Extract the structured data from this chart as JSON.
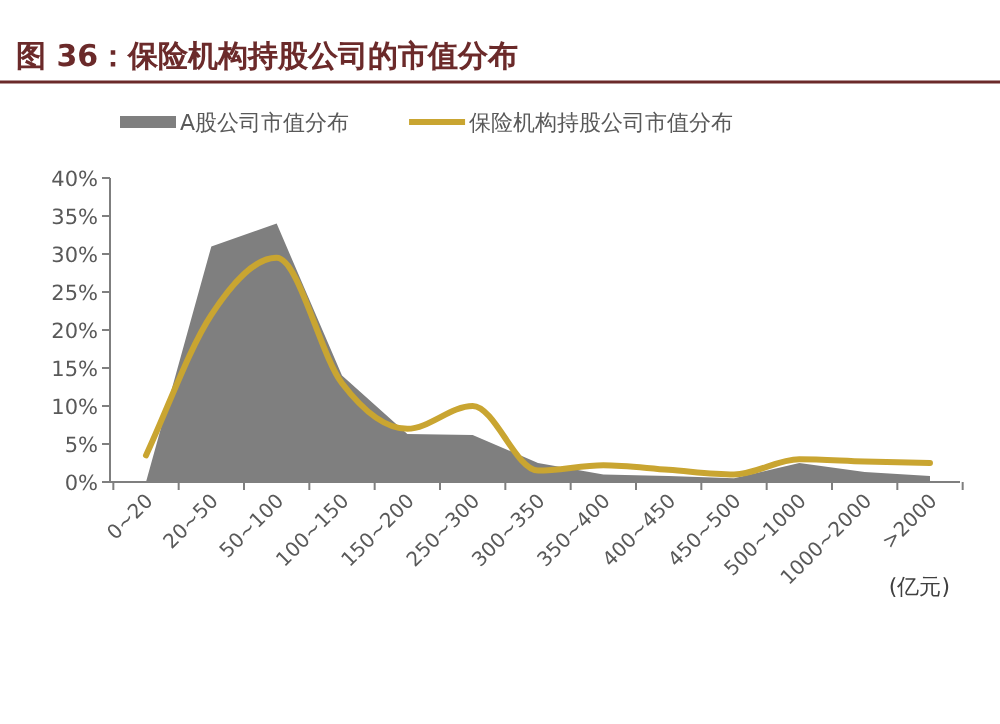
{
  "chart_data": {
    "type": "area",
    "title": "图 36：保险机构持股公司的市值分布",
    "categories": [
      "0~20",
      "20~50",
      "50~100",
      "100~150",
      "150~200",
      "250~300",
      "300~350",
      "350~400",
      "400~450",
      "450~500",
      "500~1000",
      "1000~2000",
      ">2000"
    ],
    "xlabel": "(亿元)",
    "series": [
      {
        "name": "A股公司市值分布",
        "color": "#7f7f7f",
        "values": [
          0,
          31,
          34,
          14,
          6.3,
          6.2,
          2.5,
          1,
          0.8,
          0.5,
          2.5,
          1.3,
          0.8
        ]
      },
      {
        "name": "保险机构持股公司市值分布",
        "type": "line",
        "color": "#c9a531",
        "values": [
          3.5,
          22,
          29.5,
          13,
          7,
          10,
          1.5,
          2.2,
          1.6,
          1,
          3,
          2.7,
          2.5
        ]
      }
    ],
    "ylim": [
      0,
      40
    ],
    "yticks": [
      {
        "value": 0,
        "label": "0%"
      },
      {
        "value": 5,
        "label": "5%"
      },
      {
        "value": 10,
        "label": "10%"
      },
      {
        "value": 15,
        "label": "15%"
      },
      {
        "value": 20,
        "label": "20%"
      },
      {
        "value": 25,
        "label": "25%"
      },
      {
        "value": 30,
        "label": "30%"
      },
      {
        "value": 35,
        "label": "35%"
      },
      {
        "value": 40,
        "label": "40%"
      }
    ],
    "legend": "top"
  }
}
